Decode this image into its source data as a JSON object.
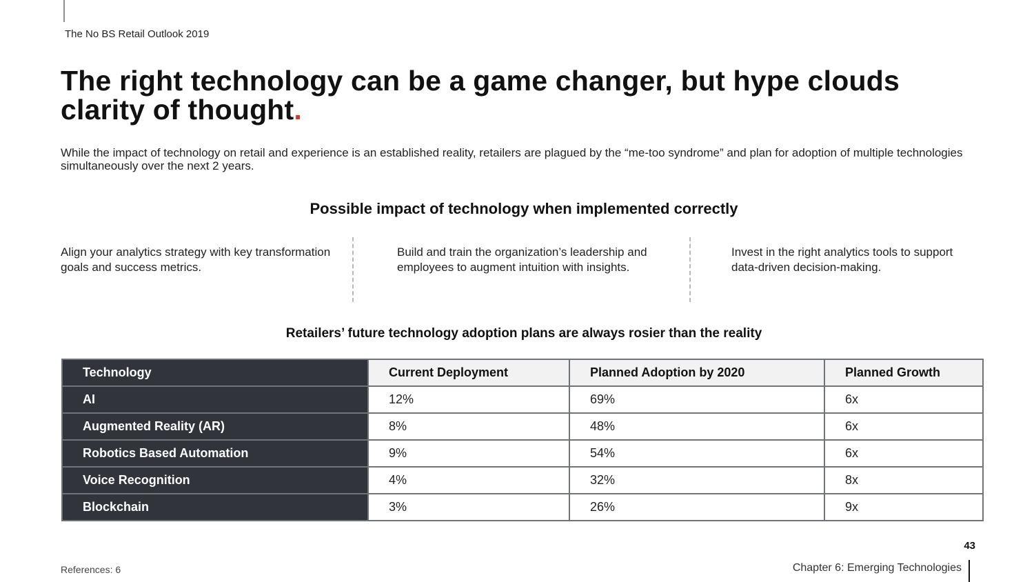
{
  "header": {
    "report_title": "The No BS Retail Outlook 2019"
  },
  "headline": {
    "text": "The right technology can be a game changer, but hype clouds clarity of thought",
    "accent_char": ".",
    "accent_color": "#e0312b"
  },
  "intro": "While the impact of technology on retail and experience is an established reality, retailers are plagued by the “me-too syndrome” and plan for adoption of multiple technologies simultaneously over the next 2 years.",
  "impact": {
    "heading": "Possible impact of technology when implemented correctly",
    "points": [
      "Align your analytics strategy with key transformation goals and success metrics.",
      "Build and train the organization’s leadership and employees to augment intuition with insights.",
      "Invest in the right analytics tools to support data-driven decision-making."
    ]
  },
  "adoption": {
    "heading": "Retailers’ future technology adoption plans are always rosier than the reality",
    "columns": [
      "Technology",
      "Current Deployment",
      "Planned Adoption by 2020",
      "Planned Growth"
    ],
    "rows": [
      [
        "AI",
        "12%",
        "69%",
        "6x"
      ],
      [
        "Augmented Reality (AR)",
        "8%",
        "48%",
        "6x"
      ],
      [
        "Robotics Based Automation",
        "9%",
        "54%",
        "6x"
      ],
      [
        "Voice Recognition",
        "4%",
        "32%",
        "8x"
      ],
      [
        "Blockchain",
        "3%",
        "26%",
        "9x"
      ]
    ]
  },
  "footer": {
    "page_number": "43",
    "references": "References: 6",
    "chapter": "Chapter 6: Emerging Technologies"
  }
}
